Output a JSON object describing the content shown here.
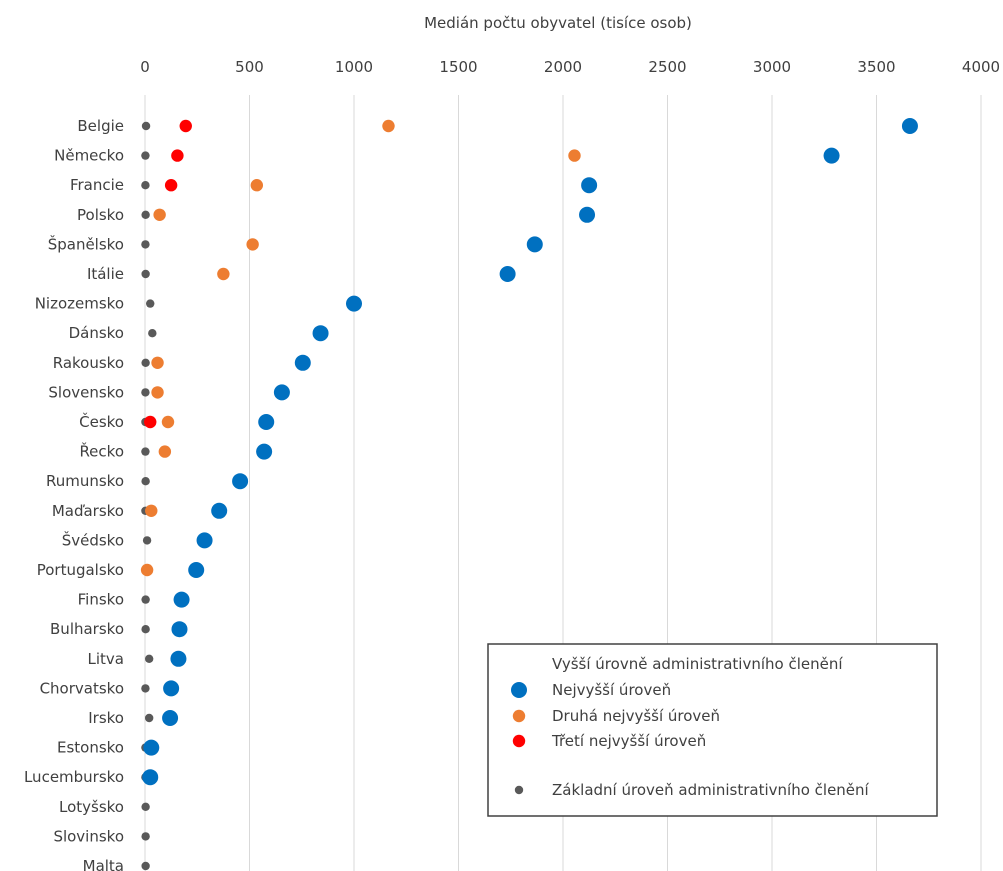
{
  "chart_data": {
    "type": "scatter",
    "title": "",
    "xlabel": "Medián počtu obyvatel (tisíce osob)",
    "ylabel": "",
    "xlim": [
      0,
      4000
    ],
    "x_ticks": [
      "0",
      "500",
      "1000",
      "1500",
      "2000",
      "2500",
      "3000",
      "3500",
      "4000"
    ],
    "x_axis_position": "top",
    "grid": "vertical",
    "legend_position": "bottom-right",
    "categories": [
      "Belgie",
      "Německo",
      "Francie",
      "Polsko",
      "Španělsko",
      "Itálie",
      "Nizozemsko",
      "Dánsko",
      "Rakousko",
      "Slovensko",
      "Česko",
      "Řecko",
      "Rumunsko",
      "Maďarsko",
      "Švédsko",
      "Portugalsko",
      "Finsko",
      "Bulharsko",
      "Litva",
      "Chorvatsko",
      "Irsko",
      "Estonsko",
      "Lucembursko",
      "Lotyšsko",
      "Slovinsko",
      "Malta"
    ],
    "legend_heading": "Vyšší úrovně administrativního členění",
    "series": [
      {
        "name": "Nejvyšší úroveň",
        "color": "#0070C0",
        "marker": "large",
        "values": [
          3660,
          3285,
          2125,
          2115,
          1865,
          1735,
          1000,
          840,
          755,
          655,
          580,
          570,
          455,
          355,
          285,
          245,
          175,
          165,
          160,
          125,
          120,
          30,
          25,
          null,
          null,
          null
        ]
      },
      {
        "name": "Druhá nejvyšší úroveň",
        "color": "#ED7D31",
        "marker": "medium",
        "values": [
          1165,
          2055,
          535,
          70,
          515,
          375,
          null,
          null,
          60,
          60,
          110,
          95,
          null,
          30,
          null,
          10,
          null,
          null,
          null,
          null,
          null,
          null,
          null,
          null,
          null,
          null
        ]
      },
      {
        "name": "Třetí nejvyšší úroveň",
        "color": "#FF0000",
        "marker": "medium",
        "values": [
          195,
          155,
          125,
          null,
          null,
          null,
          null,
          null,
          null,
          null,
          25,
          null,
          null,
          null,
          null,
          null,
          null,
          null,
          null,
          null,
          null,
          null,
          null,
          null,
          null,
          null
        ]
      },
      {
        "name": "Základní úroveň administrativního členění",
        "color": "#595959",
        "marker": "small",
        "values": [
          5,
          2,
          2,
          3,
          2,
          3,
          25,
          35,
          3,
          2,
          2,
          2,
          3,
          2,
          10,
          2,
          3,
          3,
          20,
          2,
          20,
          2,
          2,
          3,
          3,
          3
        ]
      }
    ]
  }
}
